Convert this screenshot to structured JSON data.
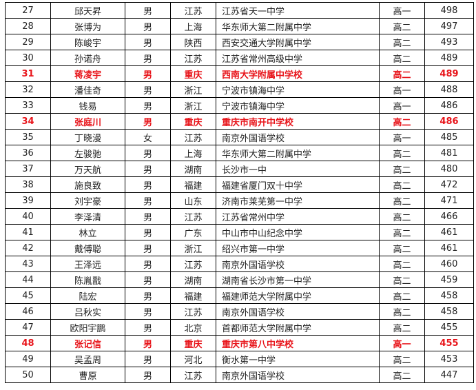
{
  "highlight_color": "#e8141a",
  "rows": [
    {
      "rank": "27",
      "name": "邱天昇",
      "gender": "男",
      "province": "江苏",
      "school": "江苏省天一中学",
      "grade": "高一",
      "score": "498",
      "highlight": false
    },
    {
      "rank": "28",
      "name": "张博为",
      "gender": "男",
      "province": "上海",
      "school": "华东师大第二附属中学",
      "grade": "高二",
      "score": "497",
      "highlight": false
    },
    {
      "rank": "29",
      "name": "陈峻宇",
      "gender": "男",
      "province": "陕西",
      "school": "西安交通大学附属中学",
      "grade": "高二",
      "score": "493",
      "highlight": false
    },
    {
      "rank": "30",
      "name": "孙诺舟",
      "gender": "男",
      "province": "江苏",
      "school": "江苏省常州高级中学",
      "grade": "高二",
      "score": "489",
      "highlight": false
    },
    {
      "rank": "31",
      "name": "蒋凌宇",
      "gender": "男",
      "province": "重庆",
      "school": "西南大学附属中学校",
      "grade": "高二",
      "score": "489",
      "highlight": true
    },
    {
      "rank": "32",
      "name": "潘佳奇",
      "gender": "男",
      "province": "浙江",
      "school": "宁波市镇海中学",
      "grade": "高一",
      "score": "488",
      "highlight": false
    },
    {
      "rank": "33",
      "name": "钱易",
      "gender": "男",
      "province": "浙江",
      "school": "宁波市镇海中学",
      "grade": "高一",
      "score": "486",
      "highlight": false
    },
    {
      "rank": "34",
      "name": "张庭川",
      "gender": "男",
      "province": "重庆",
      "school": "重庆市南开中学校",
      "grade": "高二",
      "score": "486",
      "highlight": true
    },
    {
      "rank": "35",
      "name": "丁晓漫",
      "gender": "女",
      "province": "江苏",
      "school": "南京外国语学校",
      "grade": "高一",
      "score": "485",
      "highlight": false
    },
    {
      "rank": "36",
      "name": "左骏驰",
      "gender": "男",
      "province": "上海",
      "school": "华东师大第二附属中学",
      "grade": "高二",
      "score": "481",
      "highlight": false
    },
    {
      "rank": "37",
      "name": "万天航",
      "gender": "男",
      "province": "湖南",
      "school": "长沙市一中",
      "grade": "高二",
      "score": "480",
      "highlight": false
    },
    {
      "rank": "38",
      "name": "施良致",
      "gender": "男",
      "province": "福建",
      "school": "福建省厦门双十中学",
      "grade": "高二",
      "score": "472",
      "highlight": false
    },
    {
      "rank": "39",
      "name": "刘宇豪",
      "gender": "男",
      "province": "山东",
      "school": "济南市莱芜第一中学",
      "grade": "高二",
      "score": "471",
      "highlight": false
    },
    {
      "rank": "40",
      "name": "李泽清",
      "gender": "男",
      "province": "江苏",
      "school": "江苏省常州中学",
      "grade": "高二",
      "score": "466",
      "highlight": false
    },
    {
      "rank": "41",
      "name": "林立",
      "gender": "男",
      "province": "广东",
      "school": "中山市中山纪念中学",
      "grade": "高二",
      "score": "461",
      "highlight": false
    },
    {
      "rank": "42",
      "name": "戴傅聪",
      "gender": "男",
      "province": "浙江",
      "school": "绍兴市第一中学",
      "grade": "高二",
      "score": "461",
      "highlight": false
    },
    {
      "rank": "43",
      "name": "王泽远",
      "gender": "男",
      "province": "江苏",
      "school": "南京外国语学校",
      "grade": "高二",
      "score": "460",
      "highlight": false
    },
    {
      "rank": "44",
      "name": "陈胤戬",
      "gender": "男",
      "province": "湖南",
      "school": "湖南省长沙市第一中学",
      "grade": "高二",
      "score": "459",
      "highlight": false
    },
    {
      "rank": "45",
      "name": "陆宏",
      "gender": "男",
      "province": "福建",
      "school": "福建师范大学附属中学",
      "grade": "高二",
      "score": "458",
      "highlight": false
    },
    {
      "rank": "46",
      "name": "吕秋实",
      "gender": "男",
      "province": "江苏",
      "school": "南京外国语学校",
      "grade": "高二",
      "score": "458",
      "highlight": false
    },
    {
      "rank": "47",
      "name": "欧阳宇鹏",
      "gender": "男",
      "province": "北京",
      "school": "首都师范大学附属中学",
      "grade": "高二",
      "score": "455",
      "highlight": false
    },
    {
      "rank": "48",
      "name": "张记信",
      "gender": "男",
      "province": "重庆",
      "school": "重庆市第八中学校",
      "grade": "高一",
      "score": "455",
      "highlight": true
    },
    {
      "rank": "49",
      "name": "吴孟周",
      "gender": "男",
      "province": "河北",
      "school": "衡水第一中学",
      "grade": "高二",
      "score": "453",
      "highlight": false
    },
    {
      "rank": "50",
      "name": "曹原",
      "gender": "男",
      "province": "江苏",
      "school": "南京外国语学校",
      "grade": "高二",
      "score": "447",
      "highlight": false
    }
  ]
}
